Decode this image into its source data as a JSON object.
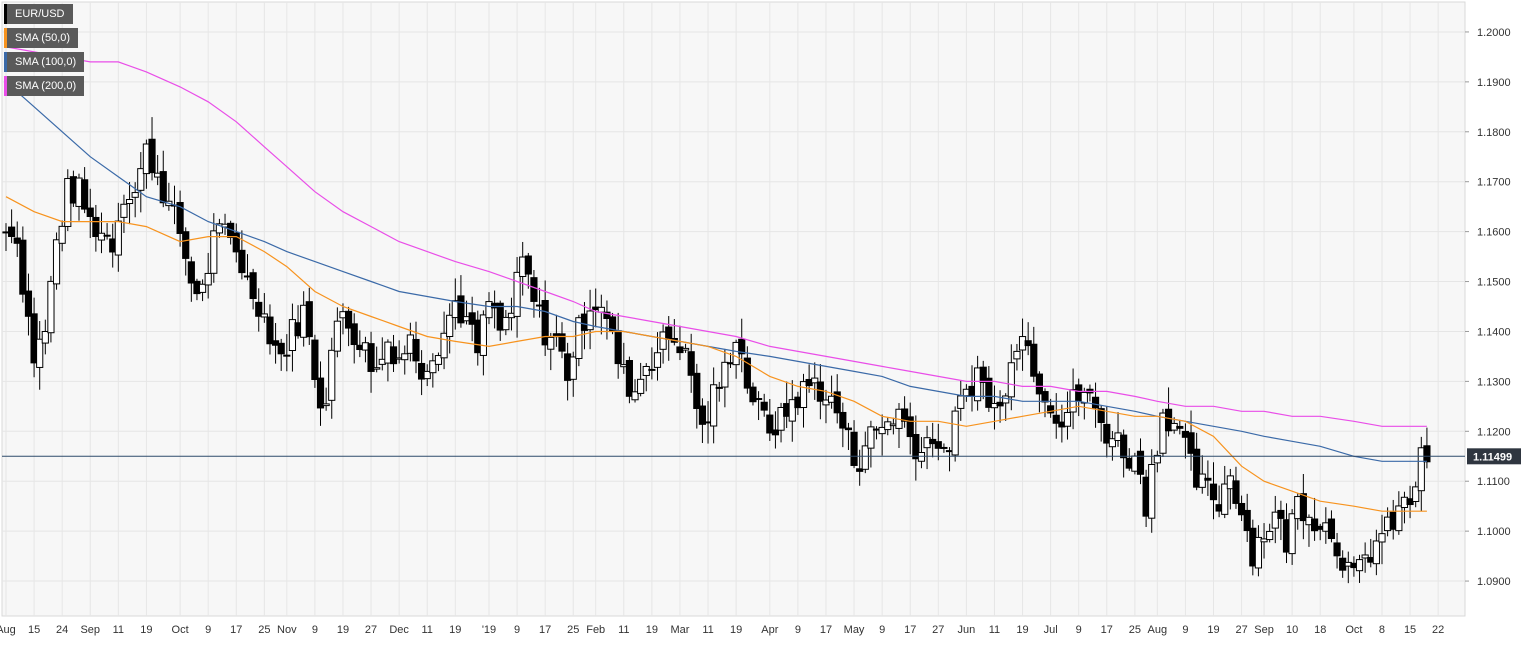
{
  "chart_data": {
    "type": "candlestick",
    "symbol": "EUR/USD",
    "ylim": [
      1.083,
      1.206
    ],
    "y_ticks": [
      "1.0900",
      "1.1000",
      "1.1100",
      "1.1200",
      "1.1300",
      "1.1400",
      "1.1500",
      "1.1600",
      "1.1700",
      "1.1800",
      "1.1900",
      "1.2000"
    ],
    "y_tick_values": [
      1.09,
      1.1,
      1.11,
      1.12,
      1.13,
      1.14,
      1.15,
      1.16,
      1.17,
      1.18,
      1.19,
      1.2
    ],
    "x_ticks": [
      "Aug",
      "15",
      "24",
      "Sep",
      "11",
      "19",
      "Oct",
      "9",
      "17",
      "25",
      "Nov",
      "9",
      "19",
      "27",
      "Dec",
      "11",
      "19",
      "'19",
      "9",
      "17",
      "25",
      "Feb",
      "11",
      "19",
      "Mar",
      "11",
      "19",
      "Apr",
      "9",
      "17",
      "May",
      "9",
      "17",
      "27",
      "Jun",
      "11",
      "19",
      "Jul",
      "9",
      "17",
      "25",
      "Aug",
      "9",
      "19",
      "27",
      "Sep",
      "10",
      "18",
      "Oct",
      "8",
      "15",
      "22"
    ],
    "x_tick_index": [
      0,
      10,
      20,
      30,
      40,
      50,
      62,
      72,
      82,
      92,
      100,
      110,
      120,
      130,
      140,
      150,
      160,
      172,
      182,
      192,
      202,
      210,
      220,
      230,
      240,
      250,
      260,
      272,
      282,
      292,
      302,
      312,
      322,
      332,
      342,
      352,
      362,
      372,
      382,
      392,
      402,
      410,
      420,
      430,
      440,
      448,
      458,
      468,
      480,
      490,
      500,
      510
    ],
    "last_price": 1.11499,
    "last_price_label": "1.11499",
    "key_points": [
      {
        "i": 0,
        "c": 1.16
      },
      {
        "i": 3,
        "c": 1.162
      },
      {
        "i": 6,
        "c": 1.15
      },
      {
        "i": 10,
        "c": 1.135
      },
      {
        "i": 14,
        "c": 1.14
      },
      {
        "i": 18,
        "c": 1.158
      },
      {
        "i": 22,
        "c": 1.168
      },
      {
        "i": 26,
        "c": 1.168
      },
      {
        "i": 30,
        "c": 1.162
      },
      {
        "i": 34,
        "c": 1.16
      },
      {
        "i": 38,
        "c": 1.158
      },
      {
        "i": 42,
        "c": 1.168
      },
      {
        "i": 46,
        "c": 1.168
      },
      {
        "i": 50,
        "c": 1.176
      },
      {
        "i": 54,
        "c": 1.172
      },
      {
        "i": 58,
        "c": 1.165
      },
      {
        "i": 62,
        "c": 1.16
      },
      {
        "i": 66,
        "c": 1.15
      },
      {
        "i": 70,
        "c": 1.148
      },
      {
        "i": 74,
        "c": 1.158
      },
      {
        "i": 78,
        "c": 1.16
      },
      {
        "i": 82,
        "c": 1.157
      },
      {
        "i": 86,
        "c": 1.15
      },
      {
        "i": 90,
        "c": 1.146
      },
      {
        "i": 94,
        "c": 1.14
      },
      {
        "i": 98,
        "c": 1.135
      },
      {
        "i": 102,
        "c": 1.14
      },
      {
        "i": 106,
        "c": 1.144
      },
      {
        "i": 110,
        "c": 1.132
      },
      {
        "i": 113,
        "c": 1.124
      },
      {
        "i": 116,
        "c": 1.136
      },
      {
        "i": 120,
        "c": 1.144
      },
      {
        "i": 124,
        "c": 1.14
      },
      {
        "i": 128,
        "c": 1.136
      },
      {
        "i": 132,
        "c": 1.132
      },
      {
        "i": 136,
        "c": 1.138
      },
      {
        "i": 140,
        "c": 1.135
      },
      {
        "i": 144,
        "c": 1.138
      },
      {
        "i": 148,
        "c": 1.133
      },
      {
        "i": 152,
        "c": 1.136
      },
      {
        "i": 156,
        "c": 1.14
      },
      {
        "i": 160,
        "c": 1.146
      },
      {
        "i": 164,
        "c": 1.142
      },
      {
        "i": 168,
        "c": 1.136
      },
      {
        "i": 172,
        "c": 1.146
      },
      {
        "i": 176,
        "c": 1.14
      },
      {
        "i": 180,
        "c": 1.144
      },
      {
        "i": 184,
        "c": 1.154
      },
      {
        "i": 188,
        "c": 1.146
      },
      {
        "i": 192,
        "c": 1.14
      },
      {
        "i": 196,
        "c": 1.138
      },
      {
        "i": 200,
        "c": 1.132
      },
      {
        "i": 204,
        "c": 1.14
      },
      {
        "i": 208,
        "c": 1.146
      },
      {
        "i": 212,
        "c": 1.146
      },
      {
        "i": 216,
        "c": 1.138
      },
      {
        "i": 220,
        "c": 1.131
      },
      {
        "i": 224,
        "c": 1.128
      },
      {
        "i": 228,
        "c": 1.134
      },
      {
        "i": 232,
        "c": 1.136
      },
      {
        "i": 236,
        "c": 1.139
      },
      {
        "i": 240,
        "c": 1.138
      },
      {
        "i": 244,
        "c": 1.131
      },
      {
        "i": 248,
        "c": 1.12
      },
      {
        "i": 252,
        "c": 1.127
      },
      {
        "i": 256,
        "c": 1.132
      },
      {
        "i": 260,
        "c": 1.14
      },
      {
        "i": 264,
        "c": 1.13
      },
      {
        "i": 268,
        "c": 1.124
      },
      {
        "i": 272,
        "c": 1.121
      },
      {
        "i": 276,
        "c": 1.122
      },
      {
        "i": 280,
        "c": 1.126
      },
      {
        "i": 284,
        "c": 1.128
      },
      {
        "i": 288,
        "c": 1.13
      },
      {
        "i": 292,
        "c": 1.127
      },
      {
        "i": 296,
        "c": 1.124
      },
      {
        "i": 300,
        "c": 1.118
      },
      {
        "i": 303,
        "c": 1.113
      },
      {
        "i": 306,
        "c": 1.118
      },
      {
        "i": 310,
        "c": 1.12
      },
      {
        "i": 314,
        "c": 1.122
      },
      {
        "i": 318,
        "c": 1.124
      },
      {
        "i": 322,
        "c": 1.119
      },
      {
        "i": 326,
        "c": 1.116
      },
      {
        "i": 330,
        "c": 1.12
      },
      {
        "i": 334,
        "c": 1.114
      },
      {
        "i": 338,
        "c": 1.122
      },
      {
        "i": 342,
        "c": 1.128
      },
      {
        "i": 346,
        "c": 1.132
      },
      {
        "i": 350,
        "c": 1.126
      },
      {
        "i": 354,
        "c": 1.124
      },
      {
        "i": 358,
        "c": 1.136
      },
      {
        "i": 361,
        "c": 1.14
      },
      {
        "i": 364,
        "c": 1.137
      },
      {
        "i": 368,
        "c": 1.13
      },
      {
        "i": 372,
        "c": 1.126
      },
      {
        "i": 376,
        "c": 1.122
      },
      {
        "i": 380,
        "c": 1.126
      },
      {
        "i": 384,
        "c": 1.128
      },
      {
        "i": 388,
        "c": 1.124
      },
      {
        "i": 392,
        "c": 1.12
      },
      {
        "i": 396,
        "c": 1.118
      },
      {
        "i": 400,
        "c": 1.115
      },
      {
        "i": 404,
        "c": 1.112
      },
      {
        "i": 406,
        "c": 1.106
      },
      {
        "i": 408,
        "c": 1.112
      },
      {
        "i": 412,
        "c": 1.124
      },
      {
        "i": 416,
        "c": 1.122
      },
      {
        "i": 420,
        "c": 1.116
      },
      {
        "i": 424,
        "c": 1.11
      },
      {
        "i": 428,
        "c": 1.108
      },
      {
        "i": 432,
        "c": 1.106
      },
      {
        "i": 436,
        "c": 1.112
      },
      {
        "i": 440,
        "c": 1.104
      },
      {
        "i": 444,
        "c": 1.096
      },
      {
        "i": 448,
        "c": 1.1
      },
      {
        "i": 452,
        "c": 1.103
      },
      {
        "i": 456,
        "c": 1.098
      },
      {
        "i": 460,
        "c": 1.106
      },
      {
        "i": 464,
        "c": 1.104
      },
      {
        "i": 468,
        "c": 1.102
      },
      {
        "i": 472,
        "c": 1.1
      },
      {
        "i": 476,
        "c": 1.095
      },
      {
        "i": 480,
        "c": 1.09
      },
      {
        "i": 484,
        "c": 1.094
      },
      {
        "i": 488,
        "c": 1.098
      },
      {
        "i": 492,
        "c": 1.1
      },
      {
        "i": 496,
        "c": 1.104
      },
      {
        "i": 500,
        "c": 1.106
      },
      {
        "i": 504,
        "c": 1.114
      },
      {
        "i": 506,
        "c": 1.115
      }
    ],
    "sma50": [
      [
        0,
        1.167
      ],
      [
        10,
        1.164
      ],
      [
        20,
        1.162
      ],
      [
        30,
        1.162
      ],
      [
        40,
        1.162
      ],
      [
        50,
        1.161
      ],
      [
        62,
        1.158
      ],
      [
        72,
        1.159
      ],
      [
        82,
        1.159
      ],
      [
        92,
        1.156
      ],
      [
        100,
        1.153
      ],
      [
        110,
        1.148
      ],
      [
        120,
        1.145
      ],
      [
        130,
        1.143
      ],
      [
        140,
        1.141
      ],
      [
        150,
        1.139
      ],
      [
        160,
        1.138
      ],
      [
        172,
        1.137
      ],
      [
        182,
        1.138
      ],
      [
        192,
        1.139
      ],
      [
        202,
        1.139
      ],
      [
        210,
        1.14
      ],
      [
        220,
        1.14
      ],
      [
        230,
        1.139
      ],
      [
        240,
        1.138
      ],
      [
        250,
        1.137
      ],
      [
        260,
        1.135
      ],
      [
        272,
        1.131
      ],
      [
        282,
        1.129
      ],
      [
        292,
        1.128
      ],
      [
        302,
        1.126
      ],
      [
        312,
        1.123
      ],
      [
        322,
        1.122
      ],
      [
        332,
        1.122
      ],
      [
        342,
        1.121
      ],
      [
        352,
        1.122
      ],
      [
        362,
        1.123
      ],
      [
        372,
        1.124
      ],
      [
        382,
        1.125
      ],
      [
        392,
        1.124
      ],
      [
        402,
        1.123
      ],
      [
        410,
        1.123
      ],
      [
        420,
        1.122
      ],
      [
        430,
        1.119
      ],
      [
        440,
        1.113
      ],
      [
        448,
        1.11
      ],
      [
        458,
        1.108
      ],
      [
        468,
        1.106
      ],
      [
        480,
        1.105
      ],
      [
        490,
        1.104
      ],
      [
        500,
        1.104
      ],
      [
        506,
        1.104
      ]
    ],
    "sma100": [
      [
        0,
        1.19
      ],
      [
        10,
        1.185
      ],
      [
        20,
        1.18
      ],
      [
        30,
        1.175
      ],
      [
        40,
        1.171
      ],
      [
        50,
        1.167
      ],
      [
        62,
        1.165
      ],
      [
        72,
        1.162
      ],
      [
        82,
        1.16
      ],
      [
        92,
        1.158
      ],
      [
        100,
        1.156
      ],
      [
        110,
        1.154
      ],
      [
        120,
        1.152
      ],
      [
        130,
        1.15
      ],
      [
        140,
        1.148
      ],
      [
        150,
        1.147
      ],
      [
        160,
        1.146
      ],
      [
        172,
        1.145
      ],
      [
        182,
        1.145
      ],
      [
        192,
        1.144
      ],
      [
        202,
        1.142
      ],
      [
        210,
        1.141
      ],
      [
        220,
        1.14
      ],
      [
        230,
        1.139
      ],
      [
        240,
        1.138
      ],
      [
        250,
        1.137
      ],
      [
        260,
        1.136
      ],
      [
        272,
        1.135
      ],
      [
        282,
        1.134
      ],
      [
        292,
        1.133
      ],
      [
        302,
        1.132
      ],
      [
        312,
        1.131
      ],
      [
        322,
        1.129
      ],
      [
        332,
        1.128
      ],
      [
        342,
        1.127
      ],
      [
        352,
        1.127
      ],
      [
        362,
        1.126
      ],
      [
        372,
        1.126
      ],
      [
        382,
        1.126
      ],
      [
        392,
        1.125
      ],
      [
        402,
        1.124
      ],
      [
        410,
        1.123
      ],
      [
        420,
        1.122
      ],
      [
        430,
        1.121
      ],
      [
        440,
        1.12
      ],
      [
        448,
        1.119
      ],
      [
        458,
        1.118
      ],
      [
        468,
        1.117
      ],
      [
        480,
        1.115
      ],
      [
        490,
        1.114
      ],
      [
        500,
        1.114
      ],
      [
        506,
        1.114
      ]
    ],
    "sma200": [
      [
        0,
        1.197
      ],
      [
        10,
        1.196
      ],
      [
        20,
        1.195
      ],
      [
        30,
        1.194
      ],
      [
        40,
        1.194
      ],
      [
        50,
        1.192
      ],
      [
        62,
        1.189
      ],
      [
        72,
        1.186
      ],
      [
        82,
        1.182
      ],
      [
        92,
        1.177
      ],
      [
        100,
        1.173
      ],
      [
        110,
        1.168
      ],
      [
        120,
        1.164
      ],
      [
        130,
        1.161
      ],
      [
        140,
        1.158
      ],
      [
        150,
        1.156
      ],
      [
        160,
        1.154
      ],
      [
        172,
        1.152
      ],
      [
        182,
        1.15
      ],
      [
        192,
        1.148
      ],
      [
        202,
        1.146
      ],
      [
        210,
        1.144
      ],
      [
        220,
        1.143
      ],
      [
        230,
        1.142
      ],
      [
        240,
        1.141
      ],
      [
        250,
        1.14
      ],
      [
        260,
        1.139
      ],
      [
        272,
        1.137
      ],
      [
        282,
        1.136
      ],
      [
        292,
        1.135
      ],
      [
        302,
        1.134
      ],
      [
        312,
        1.133
      ],
      [
        322,
        1.132
      ],
      [
        332,
        1.131
      ],
      [
        342,
        1.13
      ],
      [
        352,
        1.13
      ],
      [
        362,
        1.129
      ],
      [
        372,
        1.129
      ],
      [
        382,
        1.128
      ],
      [
        392,
        1.128
      ],
      [
        402,
        1.127
      ],
      [
        410,
        1.126
      ],
      [
        420,
        1.125
      ],
      [
        430,
        1.125
      ],
      [
        440,
        1.124
      ],
      [
        448,
        1.124
      ],
      [
        458,
        1.123
      ],
      [
        468,
        1.123
      ],
      [
        480,
        1.122
      ],
      [
        490,
        1.121
      ],
      [
        500,
        1.121
      ],
      [
        506,
        1.121
      ]
    ],
    "legend": [
      {
        "label": "EUR/USD",
        "color": "#000000"
      },
      {
        "label": "SMA (50,0)",
        "color": "#f7931e"
      },
      {
        "label": "SMA (100,0)",
        "color": "#3b6aa8"
      },
      {
        "label": "SMA (200,0)",
        "color": "#e94ee8"
      }
    ],
    "colors": {
      "grid": "#e6e6e6",
      "plot_bg": "#f7f7f7",
      "candle": "#000000",
      "price_line": "#2f4b6b",
      "price_label_bg": "#2f3640",
      "text": "#333333"
    }
  }
}
